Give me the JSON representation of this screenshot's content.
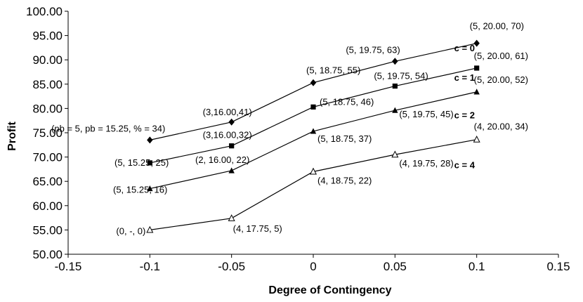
{
  "chart_data": {
    "type": "line",
    "title": "",
    "xlabel": "Degree of Contingency",
    "ylabel": "Profit",
    "xlim": [
      -0.15,
      0.15
    ],
    "ylim": [
      50,
      100
    ],
    "x_ticks": [
      "-0.15",
      "-0.1",
      "-0.05",
      "0",
      "0.05",
      "0.1",
      "0.15"
    ],
    "y_ticks": [
      "50.00",
      "55.00",
      "60.00",
      "65.00",
      "70.00",
      "75.00",
      "80.00",
      "85.00",
      "90.00",
      "95.00",
      "100.00"
    ],
    "grid": false,
    "x": [
      -0.1,
      -0.05,
      0,
      0.05,
      0.1
    ],
    "series": [
      {
        "name": "c = 0",
        "marker": "diamond",
        "values": [
          73.5,
          77.2,
          85.3,
          89.7,
          93.4
        ],
        "point_labels": [
          "(nb = 5, pb = 15.25, % = 34)",
          "(3,16.00,41)",
          "(5, 18.75, 55)",
          "(5, 19.75, 63)",
          "(5, 20.00, 70)"
        ]
      },
      {
        "name": "c = 1",
        "marker": "square",
        "values": [
          68.8,
          72.3,
          80.3,
          84.6,
          88.3
        ],
        "point_labels": [
          "(5, 15.25, 25)",
          "(3,16.00,32)",
          "(5, 18.75, 46)",
          "(5, 19.75, 54)",
          "(5, 20.00, 61)"
        ]
      },
      {
        "name": "c = 2",
        "marker": "triangle",
        "values": [
          63.5,
          67.2,
          75.3,
          79.6,
          83.4
        ],
        "point_labels": [
          "(5, 15.25, 16)",
          "(2, 16.00, 22)",
          "(5, 18.75, 37)",
          "(5, 19.75, 45)",
          "(5, 20.00, 52)"
        ]
      },
      {
        "name": "c = 4",
        "marker": "triangle-open",
        "values": [
          55.0,
          57.4,
          67.0,
          70.5,
          73.6
        ],
        "point_labels": [
          "(0, -, 0)",
          "(4, 17.75, 5)",
          "(4, 18.75, 22)",
          "(4, 19.75, 28)",
          "(4, 20.00, 34)"
        ]
      }
    ]
  }
}
